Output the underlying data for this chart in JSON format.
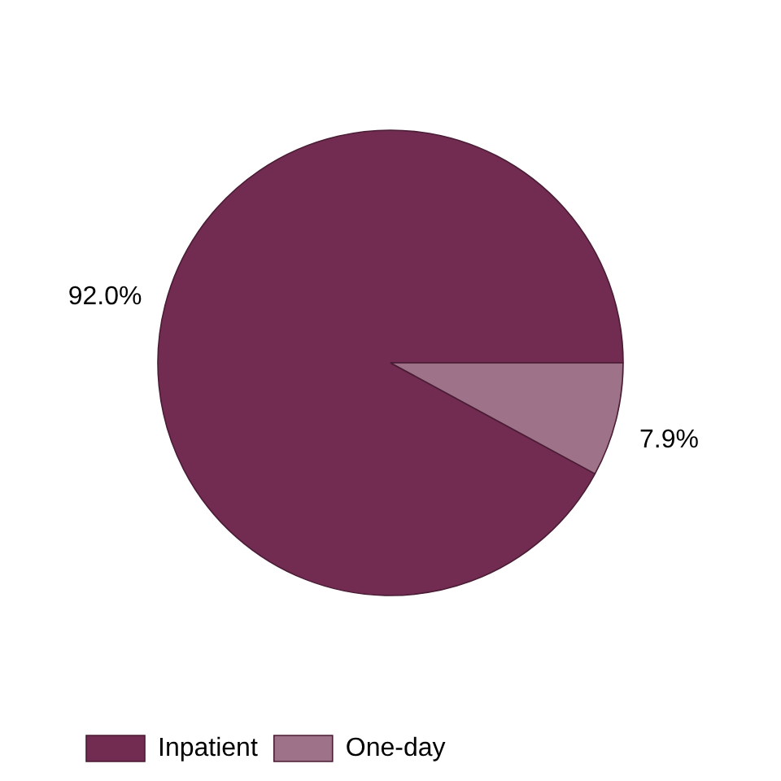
{
  "chart_data": {
    "type": "pie",
    "categories": [
      "Inpatient",
      "One-day"
    ],
    "values": [
      92.0,
      7.9
    ],
    "colors": [
      "#722c51",
      "#9e7289"
    ],
    "value_labels": [
      "92.0%",
      "7.9%"
    ],
    "legend": "bottom left"
  }
}
